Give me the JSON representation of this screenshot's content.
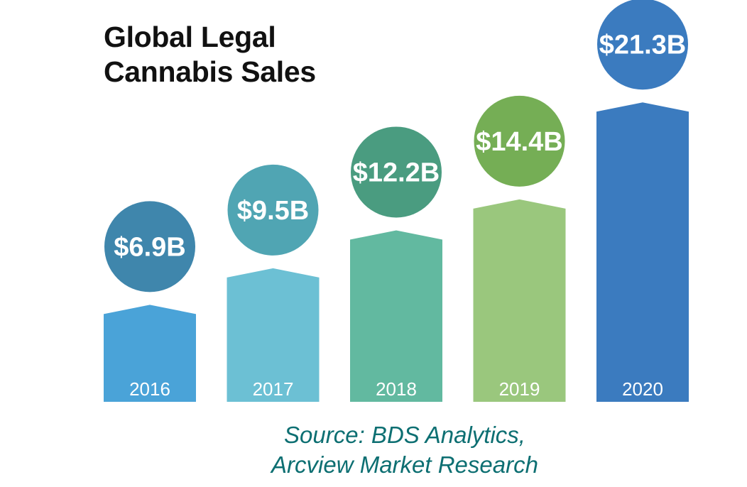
{
  "chart_data": {
    "type": "bar",
    "title_lines": [
      "Global Legal",
      "Cannabis Sales"
    ],
    "categories": [
      "2016",
      "2017",
      "2018",
      "2019",
      "2020"
    ],
    "values": [
      6.9,
      9.5,
      12.2,
      14.4,
      21.3
    ],
    "value_labels": [
      "$6.9B",
      "$9.5B",
      "$12.2B",
      "$14.4B",
      "$21.3B"
    ],
    "unit": "$B",
    "colors": {
      "bars": [
        "#4aa3d8",
        "#6cc0d4",
        "#62b9a0",
        "#9ac77d",
        "#3b7bbf"
      ],
      "circles": [
        "#3f86ac",
        "#50a5b3",
        "#4a9c80",
        "#75ae55",
        "#3b7bbf"
      ],
      "label_text": "#ffffff"
    },
    "source_lines": [
      "Source: BDS Analytics,",
      "Arcview Market Research"
    ]
  }
}
